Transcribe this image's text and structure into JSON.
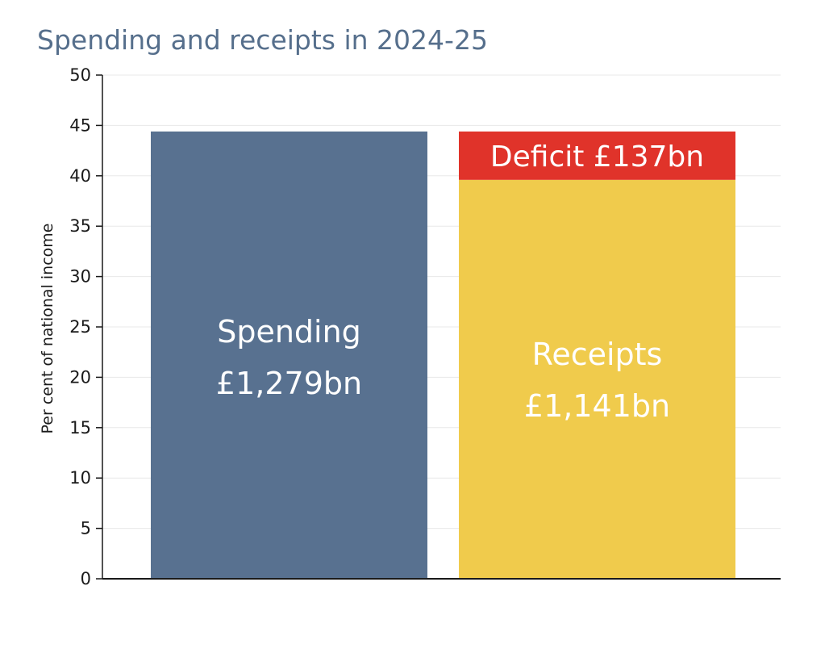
{
  "chart_data": {
    "type": "bar",
    "stacked": true,
    "title": "Spending and receipts in 2024-25",
    "xlabel": "",
    "ylabel": "Per cent of national income",
    "ylim": [
      0,
      50
    ],
    "yticks": [
      0,
      5,
      10,
      15,
      20,
      25,
      30,
      35,
      40,
      45,
      50
    ],
    "grid": true,
    "categories": [
      "Spending",
      "Receipts"
    ],
    "series": [
      {
        "key": "spending",
        "category": "Spending",
        "value": 44.4,
        "label_lines": [
          "Spending",
          "£1,279bn"
        ],
        "color": "#587190"
      },
      {
        "key": "receipts",
        "category": "Receipts",
        "value": 39.6,
        "label_lines": [
          "Receipts",
          "£1,141bn"
        ],
        "color": "#f0cb4c"
      },
      {
        "key": "deficit",
        "category": "Receipts",
        "value": 4.8,
        "label_lines": [
          "Deficit £137bn"
        ],
        "color": "#e0332a"
      }
    ],
    "colors": {
      "title": "#566f8c",
      "axis": "#1a1a1a",
      "gridline": "#e8e8e8"
    }
  }
}
